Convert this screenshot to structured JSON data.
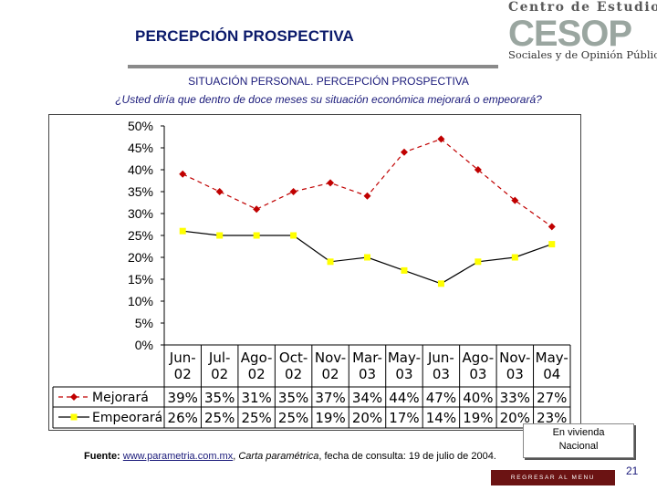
{
  "header": {
    "title": "PERCEPCIÓN PROSPECTIVA",
    "logo": {
      "line1": "Centro de Estudios",
      "mark": "CESOP",
      "line3": "Sociales y de Opinión Pública"
    }
  },
  "colors": {
    "title": "#0b1a6b",
    "mejorara": "#c00000",
    "empeorara": "#ffff00",
    "empeorara_line": "#000000",
    "menu_button": "#6b1313"
  },
  "chart_data": {
    "type": "line",
    "title": "SITUACIÓN PERSONAL. PERCEPCIÓN PROSPECTIVA",
    "subtitle": "¿Usted diría que dentro de doce meses su situación económica mejorará o empeorará?",
    "categories": [
      "Jun-02",
      "Jul-02",
      "Ago-02",
      "Oct-02",
      "Nov-02",
      "Mar-03",
      "May-03",
      "Jun-03",
      "Ago-03",
      "Nov-03",
      "May-04"
    ],
    "y_ticks": [
      "0%",
      "5%",
      "10%",
      "15%",
      "20%",
      "25%",
      "30%",
      "35%",
      "40%",
      "45%",
      "50%"
    ],
    "ylim": [
      0,
      50
    ],
    "series": [
      {
        "name": "Mejorará",
        "values": [
          39,
          35,
          31,
          35,
          37,
          34,
          44,
          47,
          40,
          33,
          27
        ],
        "labels": [
          "39%",
          "35%",
          "31%",
          "35%",
          "37%",
          "34%",
          "44%",
          "47%",
          "40%",
          "33%",
          "27%"
        ]
      },
      {
        "name": "Empeorará",
        "values": [
          26,
          25,
          25,
          25,
          19,
          20,
          17,
          14,
          19,
          20,
          23
        ],
        "labels": [
          "26%",
          "25%",
          "25%",
          "25%",
          "19%",
          "20%",
          "17%",
          "14%",
          "19%",
          "20%",
          "23%"
        ]
      }
    ],
    "footnote": [
      "En vivienda",
      "Nacional"
    ]
  },
  "footer": {
    "source_label": "Fuente:",
    "source_link": "www.parametria.com.mx",
    "source_publication": "Carta paramétrica",
    "source_rest": ", fecha de consulta: 19 de julio de 2004.",
    "menu_button": "REGRESAR AL MENU PRINCIPAL",
    "page_number": "21"
  }
}
